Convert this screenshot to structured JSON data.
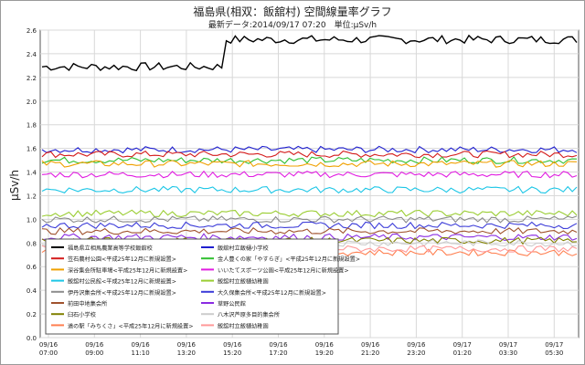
{
  "chart_data": {
    "type": "line",
    "title": "福島県(相双：飯舘村) 空間線量率グラフ",
    "subtitle": "最新データ:2014/09/17 07:20　単位:μSv/h",
    "ylabel": "μSv/h",
    "xlabel": "",
    "ylim": [
      0,
      2.6
    ],
    "y_ticks": [
      "0.0",
      "0.2",
      "0.4",
      "0.6",
      "0.8",
      "1.0",
      "1.2",
      "1.4",
      "1.6",
      "1.8",
      "2.0",
      "2.2",
      "2.4",
      "2.6"
    ],
    "x_ticks": [
      {
        "date": "09/16",
        "time": "07:00"
      },
      {
        "date": "09/16",
        "time": "09:00"
      },
      {
        "date": "09/16",
        "time": "11:10"
      },
      {
        "date": "09/16",
        "time": "13:20"
      },
      {
        "date": "09/16",
        "time": "15:20"
      },
      {
        "date": "09/16",
        "time": "17:20"
      },
      {
        "date": "09/16",
        "time": "19:20"
      },
      {
        "date": "09/16",
        "time": "21:20"
      },
      {
        "date": "09/16",
        "time": "23:20"
      },
      {
        "date": "09/17",
        "time": "01:20"
      },
      {
        "date": "09/17",
        "time": "03:30"
      },
      {
        "date": "09/17",
        "time": "05:30"
      }
    ],
    "grid": true,
    "legend_position": "lower-left",
    "series": [
      {
        "name": "福島県立相馬農業高等学校飯舘校",
        "color": "#000000",
        "pattern": "step",
        "values": [
          2.29,
          2.52
        ]
      },
      {
        "name": "飯舘村立飯樋小学校",
        "color": "#1f1fcf",
        "values": [
          1.59
        ]
      },
      {
        "name": "笠石農村公園<平成25年12月に新規設置>",
        "color": "#d41b1b",
        "values": [
          1.55
        ]
      },
      {
        "name": "金人豊くの家「やすらぎ」<平成25年12月に新規設置>",
        "color": "#2fbf2f",
        "values": [
          1.5
        ]
      },
      {
        "name": "深谷集会所駐車場<平成25年12月に新規設置>",
        "color": "#f0a000",
        "values": [
          1.47
        ]
      },
      {
        "name": "いいたてスポーツ公園<平成25年12月に新規設置>",
        "color": "#e11de1",
        "values": [
          1.38
        ]
      },
      {
        "name": "飯舘村公民館<平成25年12月に新規設置>",
        "color": "#1cc6e6",
        "values": [
          1.25
        ]
      },
      {
        "name": "飯舘村立飯樋幼稚園",
        "color": "#9acd32",
        "values": [
          1.05
        ]
      },
      {
        "name": "伊丹沢集会所<平成25年12月に新規設置>",
        "color": "#8c8c8c",
        "values": [
          1.0
        ]
      },
      {
        "name": "大久保集会所<平成25年12月に新規設置>",
        "color": "#3b3bd8",
        "values": [
          0.95
        ]
      },
      {
        "name": "前田中地集会所",
        "color": "#a0522d",
        "values": [
          0.9
        ]
      },
      {
        "name": "草野公民館",
        "color": "#8a2be2",
        "values": [
          0.85
        ]
      },
      {
        "name": "臼石小学校",
        "color": "#808000",
        "values": [
          0.82
        ]
      },
      {
        "name": "八木沢芦原多目的集会所",
        "color": "#cccccc",
        "values": [
          0.8
        ]
      },
      {
        "name": "道の駅「みちくさ」<平成25年12月に新規設置>",
        "color": "#ff7f50",
        "values": [
          0.72
        ]
      },
      {
        "name": "飯舘村立飯樋幼稚園",
        "color": "#ff9999",
        "values": [
          0.75
        ]
      }
    ]
  }
}
